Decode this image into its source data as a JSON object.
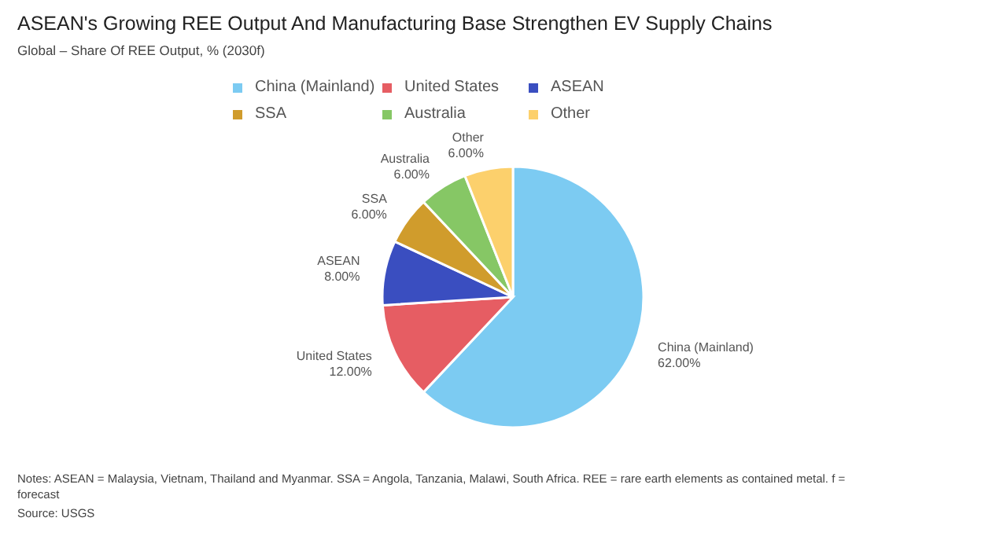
{
  "chart_data": {
    "type": "pie",
    "title": "ASEAN's Growing REE Output And Manufacturing Base Strengthen EV Supply Chains",
    "subtitle": "Global – Share Of REE Output, % (2030f)",
    "categories": [
      "China (Mainland)",
      "United States",
      "ASEAN",
      "SSA",
      "Australia",
      "Other"
    ],
    "values": [
      62,
      12,
      8,
      6,
      6,
      6
    ],
    "value_labels": [
      "62.00%",
      "12.00%",
      "8.00%",
      "6.00%",
      "6.00%",
      "6.00%"
    ],
    "colors": [
      "#7ccbf2",
      "#e65d63",
      "#3a4ec0",
      "#d09c2c",
      "#86c765",
      "#fcd06c"
    ],
    "legend": "top",
    "annotations": [
      "Notes: ASEAN = Malaysia, Vietnam, Thailand and Myanmar. SSA = Angola, Tanzania, Malawi, South Africa. REE = rare earth elements as contained metal. f = forecast",
      "Source: USGS"
    ]
  }
}
